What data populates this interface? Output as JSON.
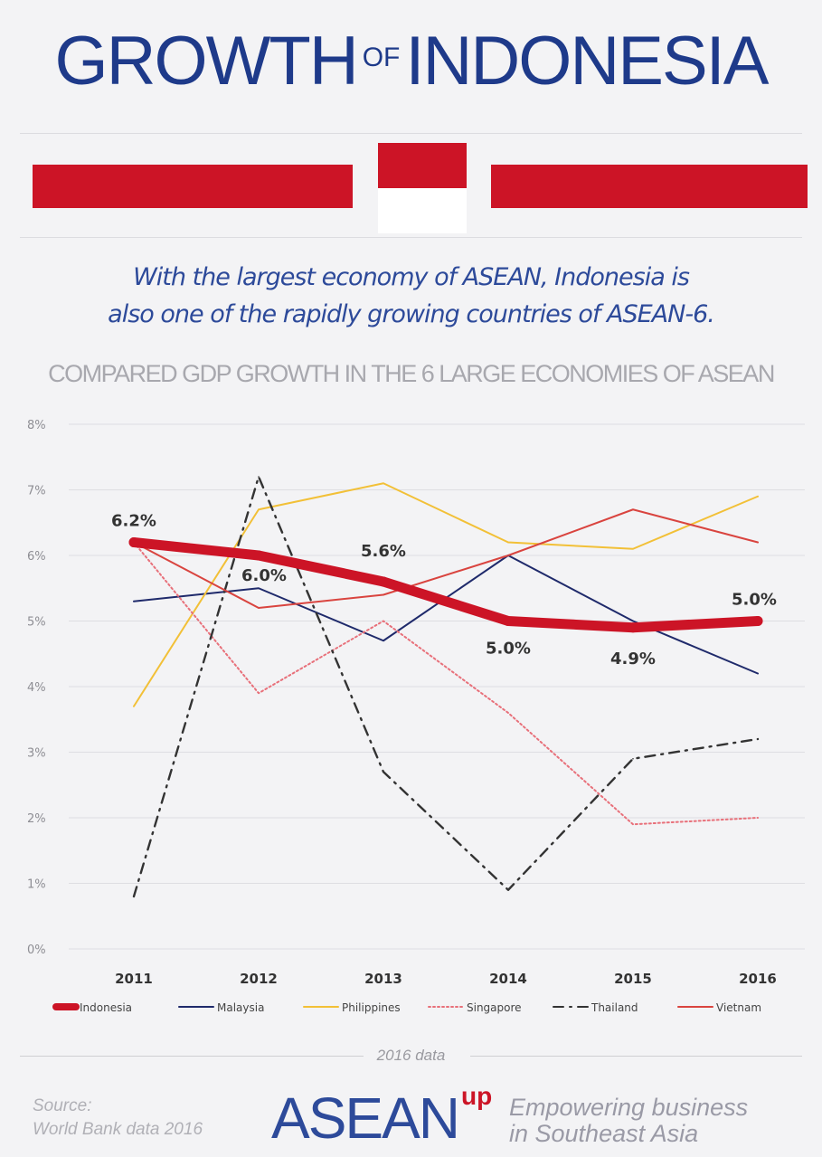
{
  "header": {
    "title_main_1": "GROWTH",
    "title_of": "OF",
    "title_main_2": "INDONESIA",
    "subtitle_line1": "With the largest economy of ASEAN, Indonesia is",
    "subtitle_line2": "also one of the rapidly growing countries of ASEAN-6."
  },
  "colors": {
    "flag_red": "#cc1426",
    "flag_white": "#ffffff",
    "title_blue": "#1e3a8a"
  },
  "chart_data": {
    "type": "line",
    "title": "COMPARED GDP GROWTH IN THE 6 LARGE ECONOMIES OF ASEAN",
    "categories": [
      "2011",
      "2012",
      "2013",
      "2014",
      "2015",
      "2016"
    ],
    "y_ticks": [
      "0%",
      "1%",
      "2%",
      "3%",
      "4%",
      "5%",
      "6%",
      "7%",
      "8%"
    ],
    "ylim": [
      0,
      8
    ],
    "y_unit": "%",
    "grid": true,
    "legend_position": "bottom",
    "series": [
      {
        "name": "Malaysia",
        "values": [
          5.3,
          5.5,
          4.7,
          6.0,
          5.0,
          4.2
        ],
        "color": "#1f2a6b",
        "style": "solid"
      },
      {
        "name": "Philippines",
        "values": [
          3.7,
          6.7,
          7.1,
          6.2,
          6.1,
          6.9
        ],
        "color": "#f2c037",
        "style": "solid"
      },
      {
        "name": "Singapore",
        "values": [
          6.2,
          3.9,
          5.0,
          3.6,
          1.9,
          2.0
        ],
        "color": "#e8707a",
        "style": "dotted"
      },
      {
        "name": "Thailand",
        "values": [
          0.8,
          7.2,
          2.7,
          0.9,
          2.9,
          3.2
        ],
        "color": "#333333",
        "style": "dashdot"
      },
      {
        "name": "Vietnam",
        "values": [
          6.2,
          5.2,
          5.4,
          6.0,
          6.7,
          6.2
        ],
        "color": "#d9443f",
        "style": "solid"
      },
      {
        "name": "Indonesia",
        "values": [
          6.2,
          6.0,
          5.6,
          5.0,
          4.9,
          5.0
        ],
        "color": "#cc1426",
        "style": "bold"
      }
    ],
    "data_labels": [
      "6.2%",
      "6.0%",
      "5.6%",
      "5.0%",
      "4.9%",
      "5.0%"
    ],
    "legend": [
      "Indonesia",
      "Malaysia",
      "Philippines",
      "Singapore",
      "Thailand",
      "Vietnam"
    ]
  },
  "footer": {
    "data_note": "2016 data",
    "source_line1": "Source:",
    "source_line2": "World Bank data 2016",
    "brand": "ASEAN",
    "brand_sup": "up",
    "tagline_line1": "Empowering business",
    "tagline_line2": "in Southeast Asia"
  }
}
